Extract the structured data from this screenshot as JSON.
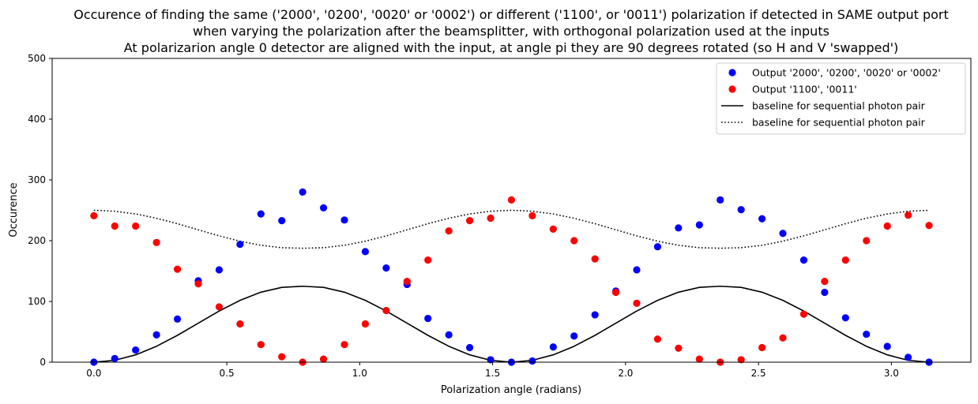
{
  "chart_data": {
    "type": "scatter",
    "title": [
      "Occurence of finding the same ('2000', '0200', '0020' or '0002') or different ('1100', or '0011') polarization if detected in SAME output port",
      "when varying the polarization after the beamsplitter, with orthogonal polarization used at the inputs",
      "At polarizarion angle 0 detector are aligned with the input, at angle pi they are 90 degrees rotated (so H and V 'swapped')"
    ],
    "xlabel": "Polarization angle (radians)",
    "ylabel": "Occurence",
    "xlim": [
      -0.157,
      3.299
    ],
    "ylim": [
      0,
      500
    ],
    "xticks": [
      "0.0",
      "0.5",
      "1.0",
      "1.5",
      "2.0",
      "2.5",
      "3.0"
    ],
    "yticks": [
      "0",
      "100",
      "200",
      "300",
      "400",
      "500"
    ],
    "legend_position": "top-right",
    "grid": false,
    "x": [
      0.0,
      0.0785,
      0.1571,
      0.2356,
      0.3142,
      0.3927,
      0.4712,
      0.5498,
      0.6283,
      0.7069,
      0.7854,
      0.8639,
      0.9425,
      1.021,
      1.0996,
      1.1781,
      1.2566,
      1.3352,
      1.4137,
      1.4923,
      1.5708,
      1.6493,
      1.7279,
      1.8064,
      1.885,
      1.9635,
      2.042,
      2.1206,
      2.1991,
      2.2777,
      2.3562,
      2.4347,
      2.5133,
      2.5918,
      2.6704,
      2.7489,
      2.8274,
      2.906,
      2.9845,
      3.0631,
      3.1416
    ],
    "series": [
      {
        "name": "Output '2000', '0200', '0020' or '0002'",
        "kind": "markers",
        "color": "#0000ff",
        "values": [
          0,
          6,
          20,
          45,
          71,
          134,
          152,
          194,
          244,
          233,
          280,
          254,
          234,
          182,
          155,
          128,
          72,
          45,
          24,
          4,
          0,
          2,
          25,
          43,
          78,
          117,
          152,
          190,
          221,
          226,
          267,
          251,
          236,
          212,
          168,
          115,
          73,
          46,
          26,
          8,
          0
        ]
      },
      {
        "name": "Output '1100', '0011'",
        "kind": "markers",
        "color": "#ff0000",
        "values": [
          241,
          224,
          224,
          197,
          153,
          129,
          91,
          63,
          29,
          9,
          0,
          5,
          29,
          63,
          85,
          133,
          168,
          216,
          233,
          237,
          267,
          241,
          219,
          200,
          170,
          115,
          97,
          38,
          23,
          5,
          0,
          4,
          24,
          40,
          79,
          133,
          168,
          200,
          224,
          242,
          225
        ]
      },
      {
        "name": "baseline for sequential photon pair",
        "kind": "line",
        "style": "solid",
        "color": "#000000",
        "values": [
          0,
          3.07,
          12.06,
          26.2,
          44.15,
          64.21,
          84.15,
          101.78,
          115.2,
          123.14,
          125,
          123.14,
          115.2,
          101.78,
          84.15,
          64.21,
          44.15,
          26.2,
          12.06,
          3.07,
          0,
          3.07,
          12.06,
          26.2,
          44.15,
          64.21,
          84.15,
          101.78,
          115.2,
          123.14,
          125,
          123.14,
          115.2,
          101.78,
          84.15,
          64.21,
          44.15,
          26.2,
          12.06,
          3.07,
          0
        ]
      },
      {
        "name": "baseline for sequential photon pair",
        "kind": "line",
        "style": "dotted",
        "color": "#000000",
        "values": [
          250,
          248.46,
          243.97,
          236.9,
          227.92,
          217.9,
          207.92,
          199.11,
          192.4,
          188.43,
          187.5,
          188.43,
          192.4,
          199.11,
          207.92,
          217.9,
          227.92,
          236.9,
          243.97,
          248.46,
          250,
          248.46,
          243.97,
          236.9,
          227.92,
          217.9,
          207.92,
          199.11,
          192.4,
          188.43,
          187.5,
          188.43,
          192.4,
          199.11,
          207.92,
          217.9,
          227.92,
          236.9,
          243.97,
          248.46,
          250
        ]
      }
    ]
  }
}
